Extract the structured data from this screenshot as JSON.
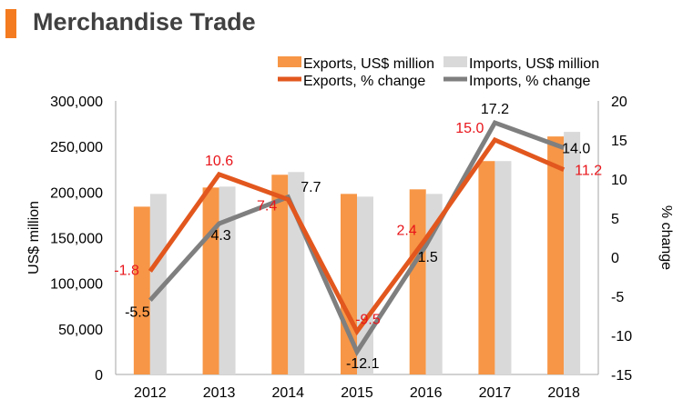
{
  "header": {
    "title": "Merchandise Trade"
  },
  "chart_data": {
    "type": "bar",
    "categories": [
      "2012",
      "2013",
      "2014",
      "2015",
      "2016",
      "2017",
      "2018"
    ],
    "series": [
      {
        "name": "Exports, US$ million",
        "kind": "bar",
        "axis": "left",
        "color": "#f79646",
        "values": [
          184000,
          205000,
          219000,
          198000,
          203000,
          234000,
          261000
        ]
      },
      {
        "name": "Imports, US$ million",
        "kind": "bar",
        "axis": "left",
        "color": "#d9d9d9",
        "values": [
          198000,
          206000,
          222000,
          195000,
          198000,
          234000,
          266000
        ]
      },
      {
        "name": "Exports, % change",
        "kind": "line",
        "axis": "right",
        "color": "#e2571e",
        "values": [
          -1.8,
          10.6,
          7.4,
          -9.5,
          2.4,
          15.0,
          11.2
        ],
        "labels": [
          "-1.8",
          "10.6",
          "7.4",
          "-9.5",
          "2.4",
          "15.0",
          "11.2"
        ],
        "label_color": "#e8141a"
      },
      {
        "name": "Imports, % change",
        "kind": "line",
        "axis": "right",
        "color": "#7f7f7f",
        "values": [
          -5.5,
          4.3,
          7.7,
          -12.1,
          1.5,
          17.2,
          14.0
        ],
        "labels": [
          "-5.5",
          "4.3",
          "7.7",
          "-12.1",
          "1.5",
          "17.2",
          "14.0"
        ],
        "label_color": "#000000"
      }
    ],
    "ylabel": "US$ million",
    "y2label": "% change",
    "ylim": [
      0,
      300000
    ],
    "y2lim": [
      -15,
      20
    ],
    "yticks": [
      "0",
      "50,000",
      "100,000",
      "150,000",
      "200,000",
      "250,000",
      "300,000"
    ],
    "y2ticks": [
      "-15",
      "-10",
      "-5",
      "0",
      "5",
      "10",
      "15",
      "20"
    ],
    "legend_position": "top-right",
    "grid": false
  }
}
